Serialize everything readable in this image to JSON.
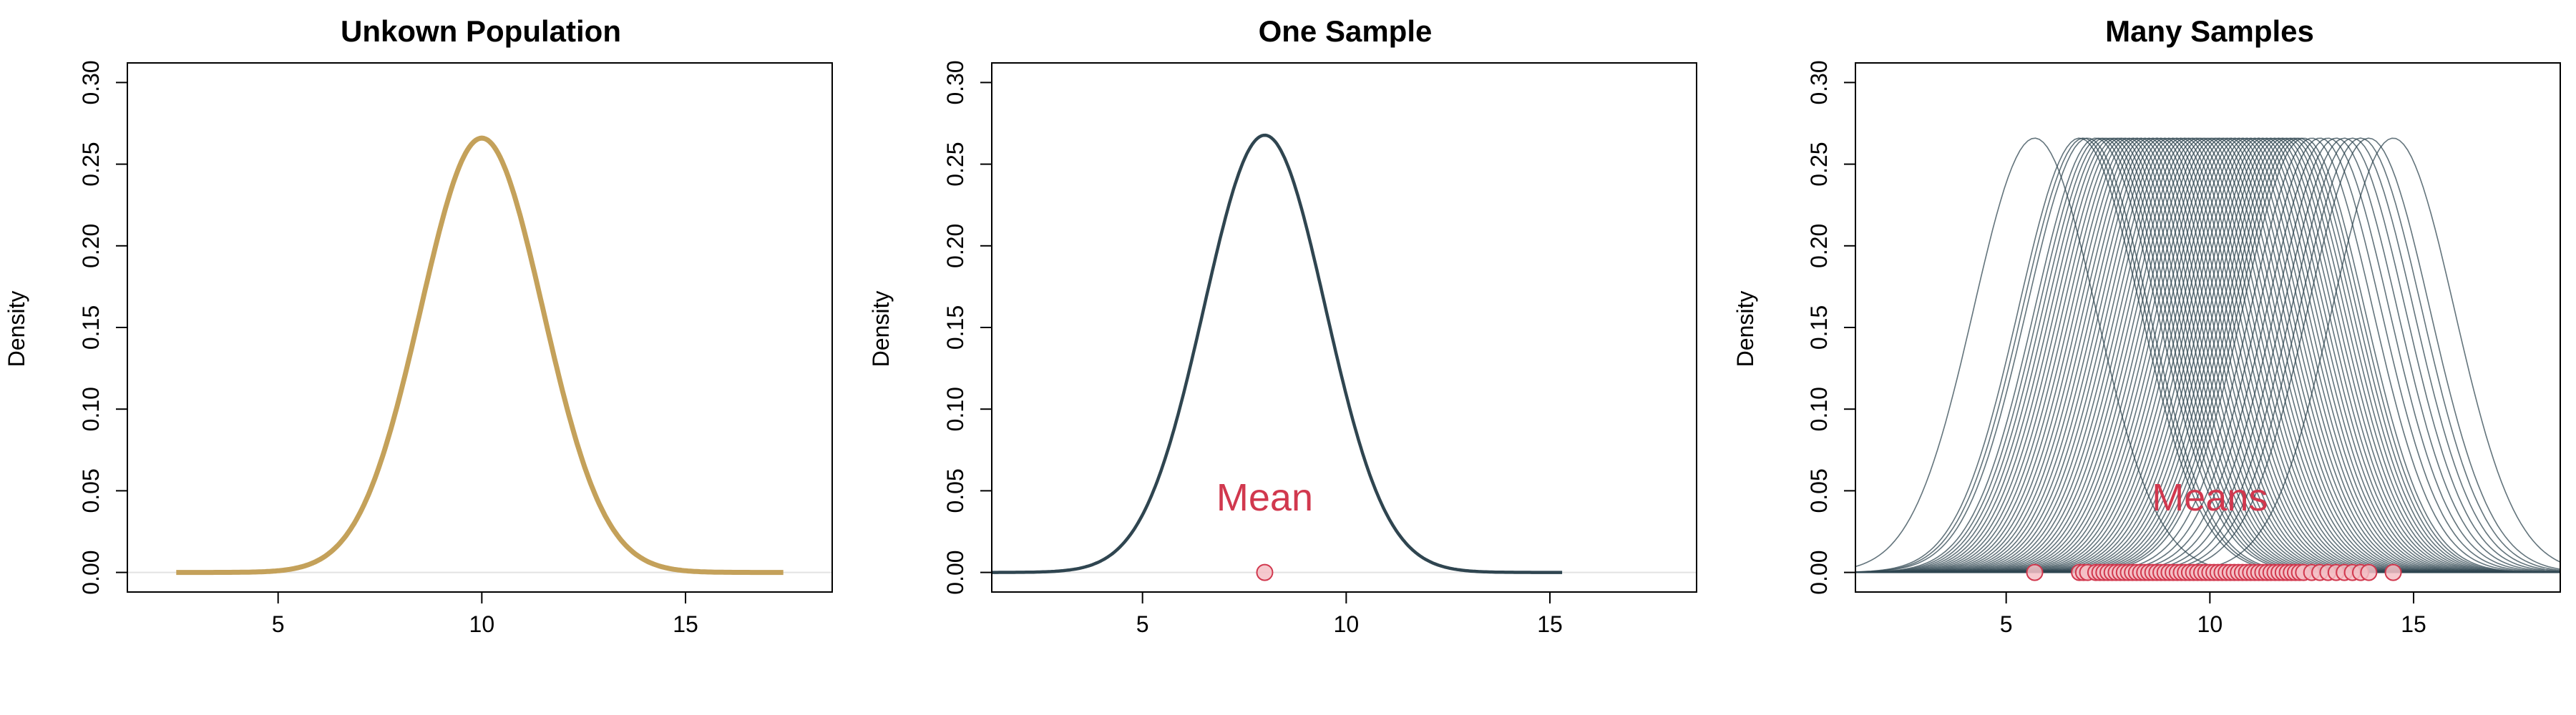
{
  "colors": {
    "population": "#C4A15A",
    "sample": "#2F4550",
    "mean": "#D1384E",
    "mean_fill": "#F4BFC6",
    "zero_line": "#E3E3E3"
  },
  "chart_data": [
    {
      "type": "line",
      "title": "Unkown Population",
      "xlabel": "",
      "ylabel": "Density",
      "xlim": [
        1.3,
        18.6
      ],
      "ylim": [
        -0.012,
        0.312
      ],
      "xticks": [
        5,
        10,
        15
      ],
      "yticks": [
        "0.00",
        "0.05",
        "0.10",
        "0.15",
        "0.20",
        "0.25",
        "0.30"
      ],
      "series": [
        {
          "kind": "normal",
          "mean": 10,
          "sd": 1.5,
          "x_range": [
            2.5,
            17.4
          ],
          "color_key": "population",
          "width": 7
        }
      ],
      "annotation": null
    },
    {
      "type": "line",
      "title": "One Sample",
      "xlabel": "",
      "ylabel": "Density",
      "xlim": [
        1.3,
        18.6
      ],
      "ylim": [
        -0.012,
        0.312
      ],
      "xticks": [
        5,
        10,
        15
      ],
      "yticks": [
        "0.00",
        "0.05",
        "0.10",
        "0.15",
        "0.20",
        "0.25",
        "0.30"
      ],
      "series": [
        {
          "kind": "normal",
          "mean": 8,
          "sd": 1.49,
          "x_range": [
            1.3,
            15.3
          ],
          "color_key": "sample",
          "width": 4.5
        }
      ],
      "means": [
        8.0
      ],
      "annotation": {
        "text": "Mean",
        "x": 8.0,
        "y": 0.038
      }
    },
    {
      "type": "line",
      "title": "Many Samples",
      "xlabel": "",
      "ylabel": "Density",
      "xlim": [
        1.3,
        18.6
      ],
      "ylim": [
        -0.012,
        0.312
      ],
      "xticks": [
        5,
        10,
        15
      ],
      "yticks": [
        "0.00",
        "0.05",
        "0.10",
        "0.15",
        "0.20",
        "0.25",
        "0.30"
      ],
      "series_kind": "many normal density curves, one per sample",
      "sample_sd": 1.5,
      "means": [
        5.7,
        6.8,
        6.9,
        7.0,
        7.2,
        7.3,
        7.4,
        7.5,
        7.6,
        7.7,
        7.8,
        7.9,
        8.0,
        8.1,
        8.2,
        8.3,
        8.4,
        8.5,
        8.6,
        8.7,
        8.8,
        8.9,
        9.0,
        9.1,
        9.2,
        9.3,
        9.4,
        9.5,
        9.6,
        9.7,
        9.8,
        9.9,
        10.0,
        10.1,
        10.2,
        10.3,
        10.4,
        10.5,
        10.6,
        10.7,
        10.8,
        10.9,
        11.0,
        11.1,
        11.2,
        11.3,
        11.4,
        11.5,
        11.6,
        11.7,
        11.8,
        11.9,
        12.0,
        12.1,
        12.2,
        12.3,
        12.5,
        12.7,
        12.9,
        13.1,
        13.3,
        13.5,
        13.7,
        13.9,
        14.5
      ],
      "annotation": {
        "text": "Means",
        "x": 10.0,
        "y": 0.038
      }
    }
  ]
}
